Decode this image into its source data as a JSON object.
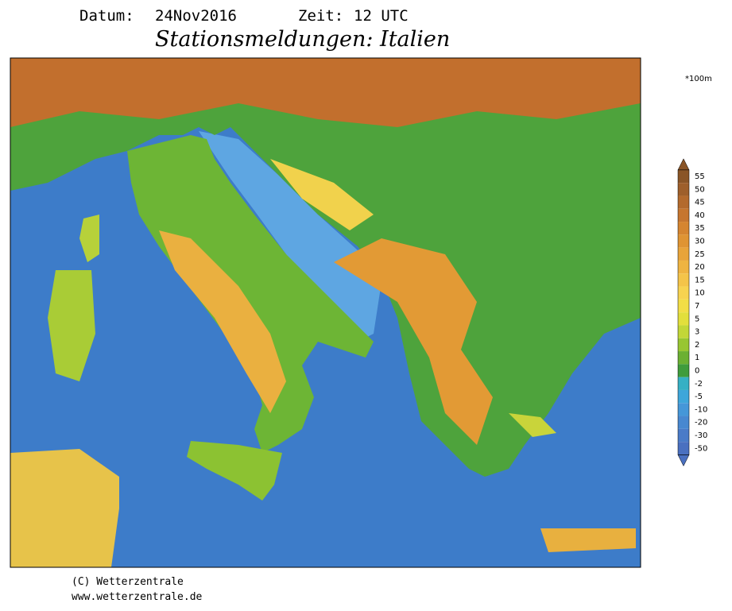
{
  "header": {
    "date_label": "Datum:",
    "date": "24Nov2016",
    "time_label": "Zeit:",
    "time": "12 UTC",
    "title": "Stationsmeldungen: Italien"
  },
  "legend": {
    "unit": "*100m",
    "ticks": [
      {
        "value": 55,
        "color": "#8a5527"
      },
      {
        "value": 50,
        "color": "#9e5f2b"
      },
      {
        "value": 45,
        "color": "#b36a2d"
      },
      {
        "value": 40,
        "color": "#c6762f"
      },
      {
        "value": 35,
        "color": "#d58530"
      },
      {
        "value": 30,
        "color": "#df9433"
      },
      {
        "value": 25,
        "color": "#e8a43a"
      },
      {
        "value": 20,
        "color": "#efb441"
      },
      {
        "value": 15,
        "color": "#f4c449"
      },
      {
        "value": 10,
        "color": "#f7d350"
      },
      {
        "value": 7,
        "color": "#f2de46"
      },
      {
        "value": 5,
        "color": "#e2df3c"
      },
      {
        "value": 3,
        "color": "#c2d738"
      },
      {
        "value": 2,
        "color": "#98c632"
      },
      {
        "value": 1,
        "color": "#6bb032"
      },
      {
        "value": 0,
        "color": "#3f9c3c"
      },
      {
        "value": -2,
        "color": "#36b0c4"
      },
      {
        "value": -5,
        "color": "#3ea6da"
      },
      {
        "value": -10,
        "color": "#4597d8"
      },
      {
        "value": -20,
        "color": "#4888d0"
      },
      {
        "value": -30,
        "color": "#4a7bc8"
      },
      {
        "value": -50,
        "color": "#4a70c0"
      }
    ]
  },
  "footer": {
    "copyright": "(C) Wetterzentrale",
    "url": "www.wetterzentrale.de"
  }
}
